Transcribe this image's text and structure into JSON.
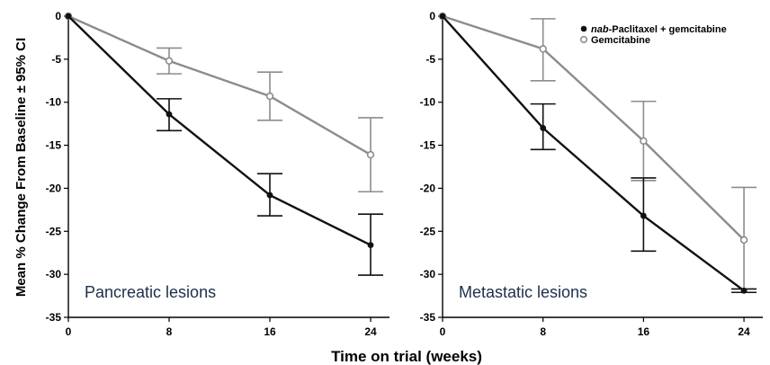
{
  "figure": {
    "ylabel": "Mean % Change From Baseline ± 95% CI",
    "xlabel": "Time on trial (weeks)"
  },
  "legend": {
    "placement": "top-right of right panel",
    "items": [
      {
        "prefix": "nab",
        "label": "-Paclitaxel + gemcitabine",
        "color": "#111111",
        "marker": "filled-circle"
      },
      {
        "prefix": "",
        "label": "Gemcitabine",
        "color": "#8c8c8c",
        "marker": "open-circle"
      }
    ]
  },
  "chart_data": [
    {
      "type": "line",
      "title": "Pancreatic lesions",
      "x": [
        0,
        8,
        16,
        24
      ],
      "xticks": [
        "0",
        "8",
        "16",
        "24"
      ],
      "ylim": [
        -35,
        0
      ],
      "yticks": [
        "0",
        "-5",
        "-10",
        "-15",
        "-20",
        "-25",
        "-30",
        "-35"
      ],
      "grid": false,
      "series": [
        {
          "name": "nab-Paclitaxel + gemcitabine",
          "color": "#111111",
          "marker": "filled",
          "values": [
            0,
            -11.4,
            -20.8,
            -26.6
          ],
          "ci_low": [
            0,
            -13.3,
            -23.2,
            -30.1
          ],
          "ci_high": [
            0,
            -9.6,
            -18.3,
            -23.0
          ]
        },
        {
          "name": "Gemcitabine",
          "color": "#8c8c8c",
          "marker": "open",
          "values": [
            0,
            -5.2,
            -9.3,
            -16.1
          ],
          "ci_low": [
            0,
            -6.7,
            -12.1,
            -20.4
          ],
          "ci_high": [
            0,
            -3.7,
            -6.5,
            -11.8
          ]
        }
      ]
    },
    {
      "type": "line",
      "title": "Metastatic lesions",
      "x": [
        0,
        8,
        16,
        24
      ],
      "xticks": [
        "0",
        "8",
        "16",
        "24"
      ],
      "ylim": [
        -35,
        0
      ],
      "yticks": [
        "0",
        "-5",
        "-10",
        "-15",
        "-20",
        "-25",
        "-30",
        "-35"
      ],
      "grid": false,
      "series": [
        {
          "name": "nab-Paclitaxel + gemcitabine",
          "color": "#111111",
          "marker": "filled",
          "values": [
            0,
            -13.0,
            -23.2,
            -31.9
          ],
          "ci_low": [
            0,
            -15.5,
            -27.3,
            -32.1
          ],
          "ci_high": [
            0,
            -10.2,
            -18.8,
            -31.7
          ]
        },
        {
          "name": "Gemcitabine",
          "color": "#8c8c8c",
          "marker": "open",
          "values": [
            0,
            -3.8,
            -14.5,
            -26.0
          ],
          "ci_low": [
            0,
            -7.5,
            -19.1,
            -32.1
          ],
          "ci_high": [
            0,
            -0.3,
            -9.9,
            -19.9
          ]
        }
      ]
    }
  ]
}
